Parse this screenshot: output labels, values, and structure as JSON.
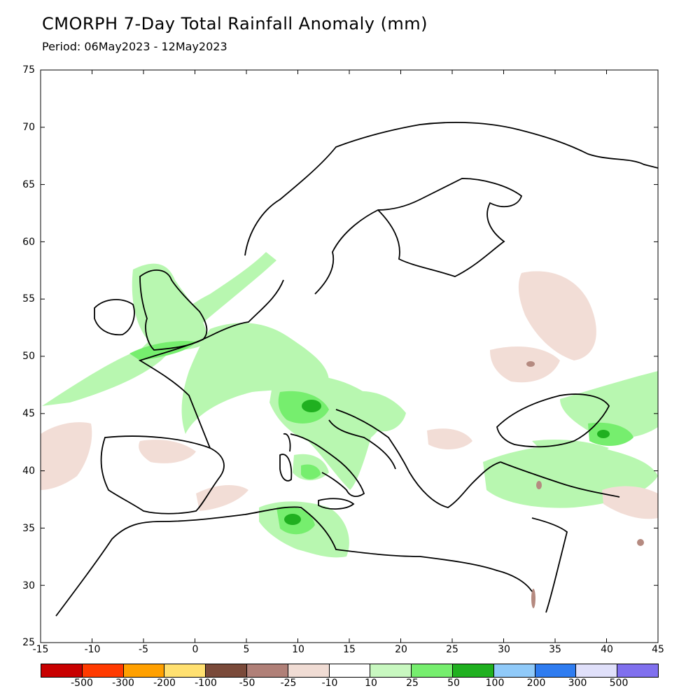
{
  "title": "CMORPH 7-Day Total Rainfall Anomaly (mm)",
  "subtitle": "Period: 06May2023 - 12May2023",
  "map": {
    "lon_range": [
      -15,
      45
    ],
    "lat_range": [
      25,
      75
    ],
    "lon_ticks": [
      "-15",
      "-10",
      "-5",
      "0",
      "5",
      "10",
      "15",
      "20",
      "25",
      "30",
      "35",
      "40",
      "45"
    ],
    "lat_ticks": [
      "75",
      "70",
      "65",
      "60",
      "55",
      "50",
      "45",
      "40",
      "35",
      "30",
      "25"
    ],
    "wet_color": "#b8f7b0",
    "wetter_color": "#76ee6e",
    "wettest_color": "#20b020",
    "dry_color": "#f2ddd6",
    "drier_color": "#b58a80"
  },
  "colorbar": {
    "colors": [
      "#c80000",
      "#ff3a00",
      "#ffa000",
      "#ffe070",
      "#7a4a3a",
      "#b08078",
      "#f0dcd4",
      "#ffffff",
      "#c8f8c0",
      "#76ee6e",
      "#20b020",
      "#90caf9",
      "#2f7cf0",
      "#e0e0fa",
      "#8070ee"
    ],
    "labels": [
      "-500",
      "-300",
      "-200",
      "-100",
      "-50",
      "-25",
      "-10",
      "10",
      "25",
      "50",
      "100",
      "200",
      "300",
      "500"
    ]
  }
}
